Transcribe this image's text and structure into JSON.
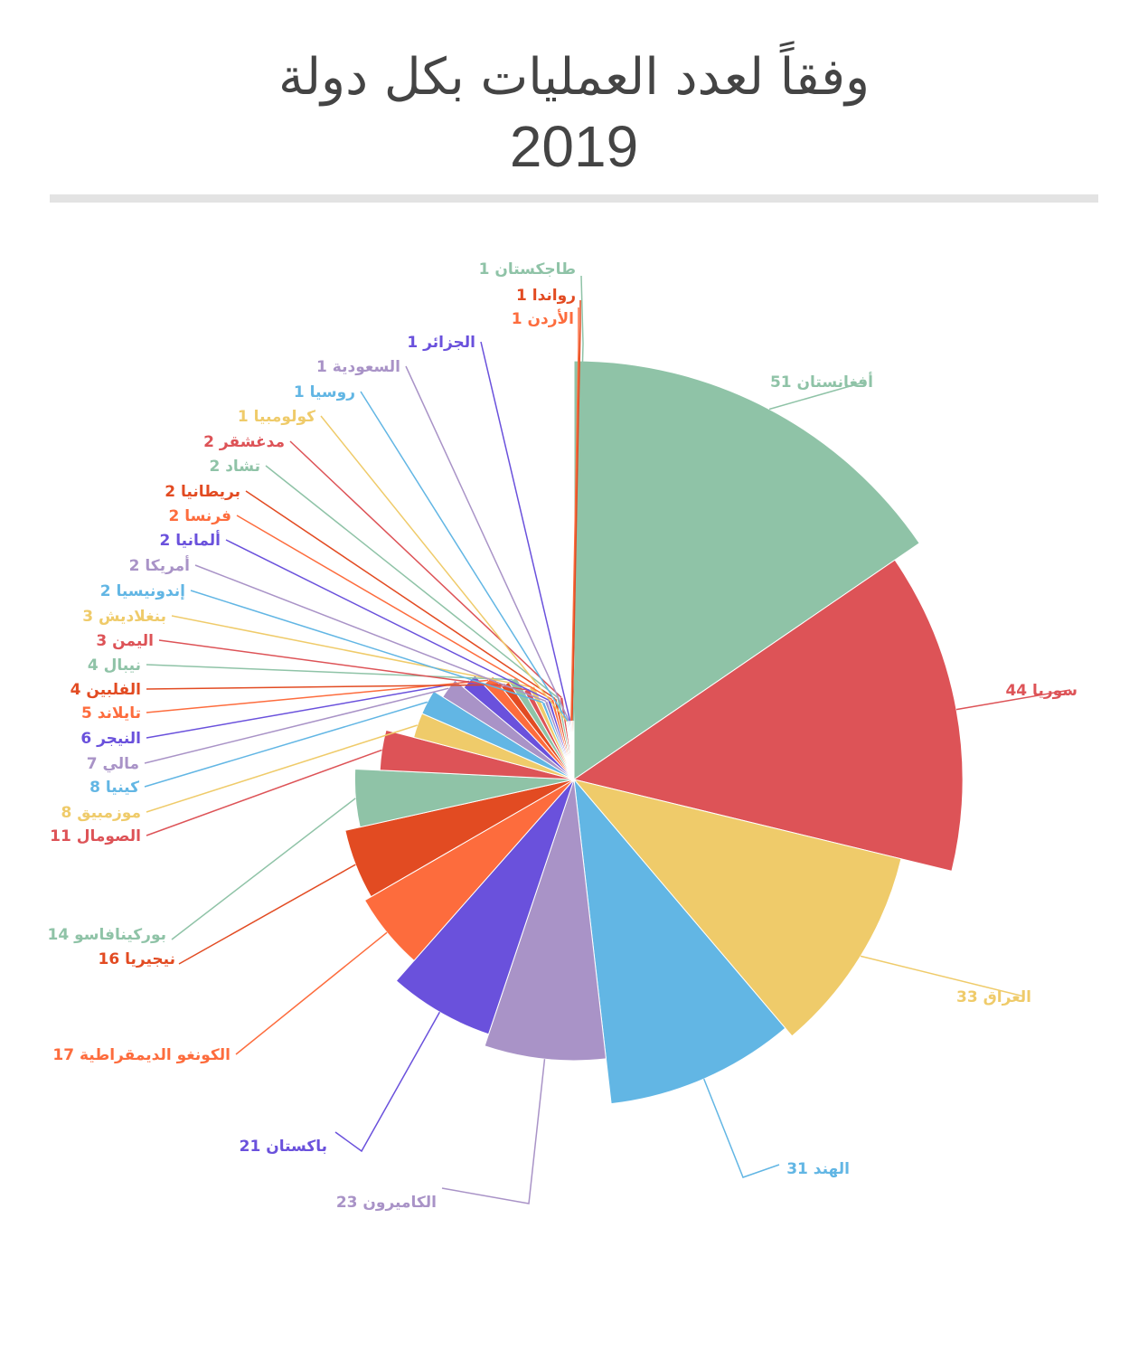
{
  "title": {
    "line1": "وفقاً لعدد العمليات بكل دولة",
    "line2": "2019"
  },
  "chart_data": {
    "type": "pie",
    "variant": "rose (radius proportional to value)",
    "title": "وفقاً لعدد العمليات بكل دولة 2019",
    "slices": [
      {
        "label": "أفغانستان",
        "value": 51,
        "color": "#8fc3a7"
      },
      {
        "label": "سوريا",
        "value": 44,
        "color": "#dd5357"
      },
      {
        "label": "العراق",
        "value": 33,
        "color": "#efcb6a"
      },
      {
        "label": "الهند",
        "value": 31,
        "color": "#62b6e4"
      },
      {
        "label": "الكاميرون",
        "value": 23,
        "color": "#a993c7"
      },
      {
        "label": "باكستان",
        "value": 21,
        "color": "#6a51dc"
      },
      {
        "label": "الكونغو الديمقراطية",
        "value": 17,
        "color": "#fd6c3d"
      },
      {
        "label": "نيجيريا",
        "value": 16,
        "color": "#e24b22"
      },
      {
        "label": "بوركينافاسو",
        "value": 14,
        "color": "#8fc3a7"
      },
      {
        "label": "الصومال",
        "value": 11,
        "color": "#dd5357"
      },
      {
        "label": "موزمبيق",
        "value": 8,
        "color": "#efcb6a"
      },
      {
        "label": "كينيا",
        "value": 8,
        "color": "#62b6e4"
      },
      {
        "label": "مالي",
        "value": 7,
        "color": "#a993c7"
      },
      {
        "label": "النيجر",
        "value": 6,
        "color": "#6a51dc"
      },
      {
        "label": "تايلاند",
        "value": 5,
        "color": "#fd6c3d"
      },
      {
        "label": "الفلبين",
        "value": 4,
        "color": "#e24b22"
      },
      {
        "label": "نيبال",
        "value": 4,
        "color": "#8fc3a7"
      },
      {
        "label": "اليمن",
        "value": 3,
        "color": "#dd5357"
      },
      {
        "label": "بنغلاديش",
        "value": 3,
        "color": "#efcb6a"
      },
      {
        "label": "إندونيسيا",
        "value": 2,
        "color": "#62b6e4"
      },
      {
        "label": "أمريكا",
        "value": 2,
        "color": "#a993c7"
      },
      {
        "label": "ألمانيا",
        "value": 2,
        "color": "#6a51dc"
      },
      {
        "label": "فرنسا",
        "value": 2,
        "color": "#fd6c3d"
      },
      {
        "label": "بريطانيا",
        "value": 2,
        "color": "#e24b22"
      },
      {
        "label": "تشاد",
        "value": 2,
        "color": "#8fc3a7"
      },
      {
        "label": "مدغشقر",
        "value": 2,
        "color": "#dd5357"
      },
      {
        "label": "كولومبيا",
        "value": 1,
        "color": "#efcb6a"
      },
      {
        "label": "روسيا",
        "value": 1,
        "color": "#62b6e4"
      },
      {
        "label": "السعودية",
        "value": 1,
        "color": "#a993c7"
      },
      {
        "label": "الجزائر",
        "value": 1,
        "color": "#6a51dc"
      },
      {
        "label": "الأردن",
        "value": 1,
        "color": "#fd6c3d"
      },
      {
        "label": "رواندا",
        "value": 1,
        "color": "#e24b22"
      },
      {
        "label": "طاجكستان",
        "value": 1,
        "color": "#8fc3a7"
      }
    ]
  }
}
